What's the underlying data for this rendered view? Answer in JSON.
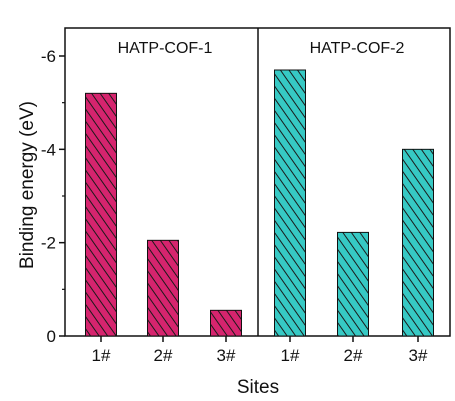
{
  "colors": {
    "series_1": "#d6246e",
    "series_2": "#36c9c4",
    "hatch": "#1a1a1a",
    "axis": "#111111"
  },
  "chart_data": {
    "type": "bar",
    "xlabel": "Sites",
    "ylabel": "Binding energy (eV)",
    "ylim": [
      0,
      -6.6
    ],
    "y_ticks": [
      "0",
      "-2",
      "-4",
      "-6"
    ],
    "y_tick_values": [
      0,
      -2,
      -4,
      -6
    ],
    "grid": false,
    "series": [
      {
        "name": "HATP-COF-1",
        "categories": [
          "1#",
          "2#",
          "3#"
        ],
        "values": [
          -5.2,
          -2.05,
          -0.55
        ],
        "fill": "hatched magenta"
      },
      {
        "name": "HATP-COF-2",
        "categories": [
          "1#",
          "2#",
          "3#"
        ],
        "values": [
          -5.7,
          -2.22,
          -4.0
        ],
        "fill": "hatched cyan"
      }
    ],
    "divider": "vertical line between panels"
  }
}
